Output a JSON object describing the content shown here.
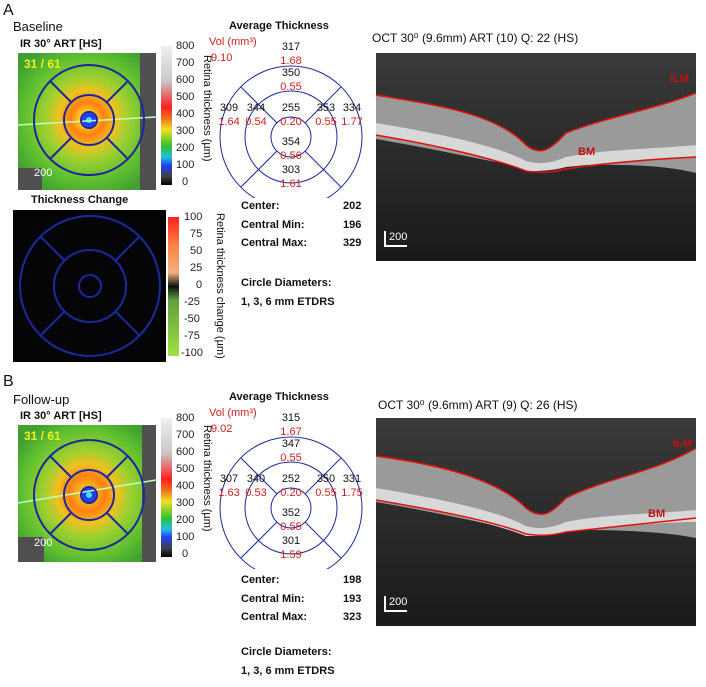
{
  "colors": {
    "accent_red": "#d02020",
    "grid_blue": "#1a2a9a"
  },
  "panel_a": {
    "letter": "A",
    "name": "Baseline",
    "ir_title": "IR 30° ART [HS]",
    "image_counter": "31 / 61",
    "scale_marker": "200",
    "thickness_scale_ticks": [
      "800",
      "700",
      "600",
      "500",
      "400",
      "300",
      "200",
      "100",
      "0"
    ],
    "thickness_axis_label": "Retina thickness (µm)",
    "avg_title": "Average Thickness",
    "vol_label": "Vol (mm³)",
    "total_vol": "9.10",
    "sectors": {
      "outer_top": {
        "thk": "317",
        "vol": "1.68"
      },
      "inner_top": {
        "thk": "350",
        "vol": "0.55"
      },
      "outer_left": {
        "thk": "309",
        "vol": "1.64"
      },
      "inner_left": {
        "thk": "344",
        "vol": "0.54"
      },
      "center": {
        "thk": "255",
        "vol": "0.20"
      },
      "inner_right": {
        "thk": "353",
        "vol": "0.55"
      },
      "outer_right": {
        "thk": "334",
        "vol": "1.77"
      },
      "inner_bottom": {
        "thk": "354",
        "vol": "0.56"
      },
      "outer_bottom": {
        "thk": "303",
        "vol": "1.61"
      }
    },
    "stats": {
      "center_label": "Center:",
      "center_value": "202",
      "min_label": "Central Min:",
      "min_value": "196",
      "max_label": "Central Max:",
      "max_value": "329"
    },
    "circle_title": "Circle Diameters:",
    "circle_value": "1, 3, 6 mm ETDRS",
    "change_title": "Thickness Change",
    "change_scale_ticks": [
      "100",
      "75",
      "50",
      "25",
      "0",
      "-25",
      "-50",
      "-75",
      "-100"
    ],
    "change_axis_label": "Retina thickness change (µm)",
    "oct_title": "OCT 30⁰ (9.6mm) ART (10) Q: 22 (HS)",
    "oct_ilm": "ILM",
    "oct_bm": "BM",
    "oct_scale": "200"
  },
  "panel_b": {
    "letter": "B",
    "name": "Follow-up",
    "ir_title": "IR 30° ART [HS]",
    "image_counter": "31 / 61",
    "scale_marker": "200",
    "thickness_scale_ticks": [
      "800",
      "700",
      "600",
      "500",
      "400",
      "300",
      "200",
      "100",
      "0"
    ],
    "thickness_axis_label": "Retina thickness (µm)",
    "avg_title": "Average Thickness",
    "vol_label": "Vol (mm³)",
    "total_vol": "9.02",
    "sectors": {
      "outer_top": {
        "thk": "315",
        "vol": "1.67"
      },
      "inner_top": {
        "thk": "347",
        "vol": "0.55"
      },
      "outer_left": {
        "thk": "307",
        "vol": "1.63"
      },
      "inner_left": {
        "thk": "340",
        "vol": "0.53"
      },
      "center": {
        "thk": "252",
        "vol": "0.20"
      },
      "inner_right": {
        "thk": "350",
        "vol": "0.55"
      },
      "outer_right": {
        "thk": "331",
        "vol": "1.75"
      },
      "inner_bottom": {
        "thk": "352",
        "vol": "0.55"
      },
      "outer_bottom": {
        "thk": "301",
        "vol": "1.59"
      }
    },
    "stats": {
      "center_label": "Center:",
      "center_value": "198",
      "min_label": "Central Min:",
      "min_value": "193",
      "max_label": "Central Max:",
      "max_value": "323"
    },
    "circle_title": "Circle Diameters:",
    "circle_value": "1, 3, 6 mm ETDRS",
    "oct_title": "OCT 30⁰ (9.6mm) ART (9) Q: 26 (HS)",
    "oct_ilm": "ILM",
    "oct_bm": "BM",
    "oct_scale": "200"
  }
}
